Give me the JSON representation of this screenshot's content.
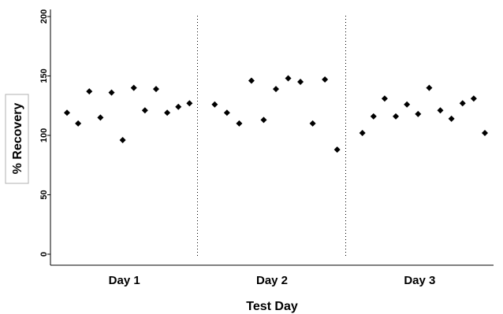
{
  "chart_data": {
    "type": "scatter",
    "title": "",
    "xlabel": "Test Day",
    "ylabel": "% Recovery",
    "categories": [
      "Day 1",
      "Day 2",
      "Day 3"
    ],
    "ylim": [
      0,
      200
    ],
    "yticks": [
      0,
      50,
      100,
      150,
      200
    ],
    "ytick_labels": [
      "0",
      "50",
      "100",
      "150",
      "200"
    ],
    "grid": false,
    "legend": "none",
    "marker": "diamond",
    "marker_color": "#000000",
    "separator_style": "dotted",
    "groups": [
      {
        "category": "Day 1",
        "values": [
          119,
          110,
          137,
          115,
          136,
          96,
          140,
          121,
          139,
          119,
          124,
          127
        ]
      },
      {
        "category": "Day 2",
        "values": [
          126,
          119,
          110,
          146,
          113,
          139,
          148,
          145,
          110,
          147,
          88
        ]
      },
      {
        "category": "Day 3",
        "values": [
          102,
          116,
          131,
          116,
          126,
          118,
          140,
          121,
          114,
          127,
          131,
          102
        ]
      }
    ]
  }
}
